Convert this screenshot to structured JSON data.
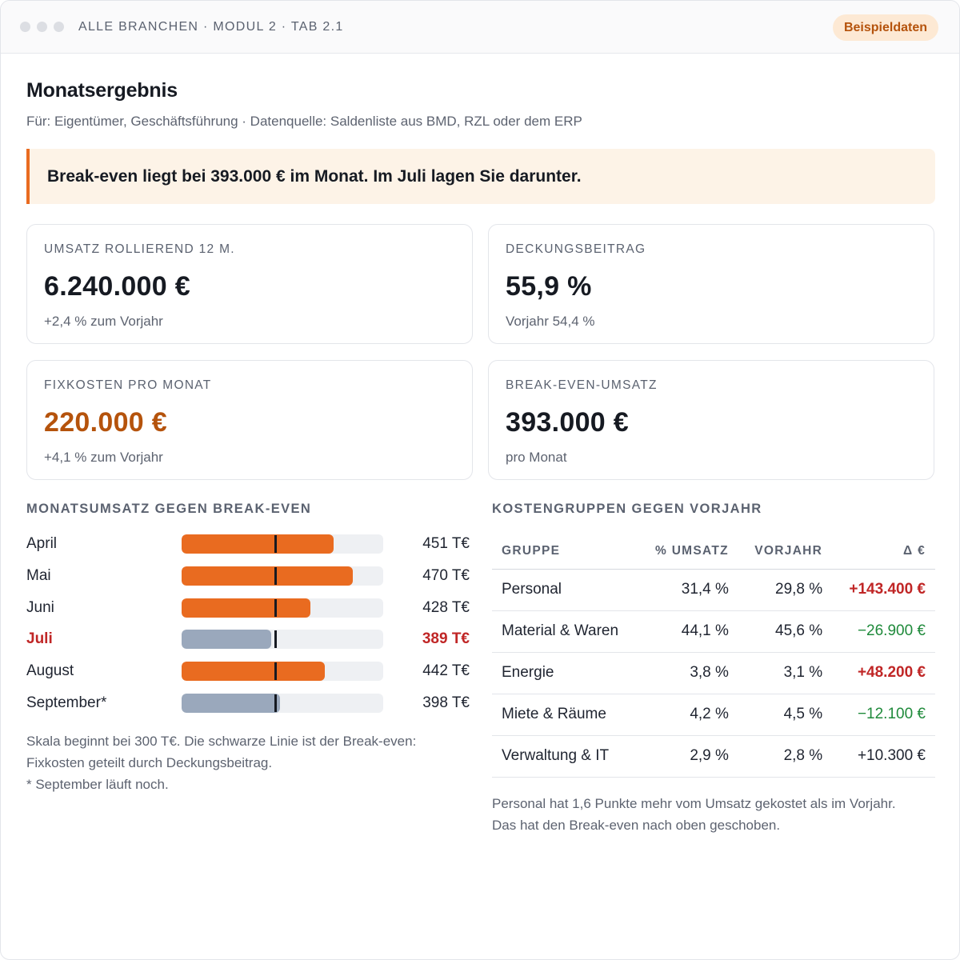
{
  "window": {
    "breadcrumb": "ALLE BRANCHEN · MODUL 2 · TAB 2.1",
    "badge": "Beispieldaten"
  },
  "page": {
    "title": "Monatsergebnis",
    "subtitle": "Für: Eigentümer, Geschäftsführung · Datenquelle: Saldenliste aus BMD, RZL oder dem ERP",
    "callout": "Break-even liegt bei 393.000 € im Monat. Im Juli lagen Sie darunter."
  },
  "kpis": [
    {
      "label": "UMSATZ ROLLIEREND 12 M.",
      "value": "6.240.000 €",
      "sub": "+2,4 % zum Vorjahr"
    },
    {
      "label": "DECKUNGSBEITRAG",
      "value": "55,9 %",
      "sub": "Vorjahr 54,4 %"
    },
    {
      "label": "FIXKOSTEN PRO MONAT",
      "value": "220.000 €",
      "sub": "+4,1 % zum Vorjahr"
    },
    {
      "label": "BREAK-EVEN-UMSATZ",
      "value": "393.000 €",
      "sub": "pro Monat"
    }
  ],
  "revenue_chart": {
    "title": "MONATSUMSATZ GEGEN BREAK-EVEN",
    "scale_min": 300,
    "scale_max": 500,
    "break_even": 393,
    "colors": {
      "above": "#e96b20",
      "below": "#9aa8bc",
      "track": "#eef0f3",
      "marker": "#161a22",
      "highlight": "#c02626"
    },
    "rows": [
      {
        "month": "April",
        "value": 451,
        "label": "451 T€",
        "status": "above",
        "highlight": false
      },
      {
        "month": "Mai",
        "value": 470,
        "label": "470 T€",
        "status": "above",
        "highlight": false
      },
      {
        "month": "Juni",
        "value": 428,
        "label": "428 T€",
        "status": "above",
        "highlight": false
      },
      {
        "month": "Juli",
        "value": 389,
        "label": "389 T€",
        "status": "below",
        "highlight": true
      },
      {
        "month": "August",
        "value": 442,
        "label": "442 T€",
        "status": "above",
        "highlight": false
      },
      {
        "month": "September*",
        "value": 398,
        "label": "398 T€",
        "status": "running",
        "highlight": false
      }
    ],
    "notes": [
      "Skala beginnt bei 300 T€. Die schwarze Linie ist der Break-even:",
      "Fixkosten geteilt durch Deckungsbeitrag.",
      "* September läuft noch."
    ]
  },
  "cost_table": {
    "title": "KOSTENGRUPPEN GEGEN VORJAHR",
    "headers": [
      "GRUPPE",
      "% UMSATZ",
      "VORJAHR",
      "Δ €"
    ],
    "rows": [
      {
        "group": "Personal",
        "share": "31,4 %",
        "prior": "29,8 %",
        "delta": "+143.400 €",
        "trend": "up"
      },
      {
        "group": "Material & Waren",
        "share": "44,1 %",
        "prior": "45,6 %",
        "delta": "−26.900 €",
        "trend": "down"
      },
      {
        "group": "Energie",
        "share": "3,8 %",
        "prior": "3,1 %",
        "delta": "+48.200 €",
        "trend": "up"
      },
      {
        "group": "Miete & Räume",
        "share": "4,2 %",
        "prior": "4,5 %",
        "delta": "−12.100 €",
        "trend": "down"
      },
      {
        "group": "Verwaltung & IT",
        "share": "2,9 %",
        "prior": "2,8 %",
        "delta": "+10.300 €",
        "trend": "neutral"
      }
    ],
    "note": "Personal hat 1,6 Punkte mehr vom Umsatz gekostet als im Vorjahr. Das hat den Break-even nach oben geschoben."
  }
}
